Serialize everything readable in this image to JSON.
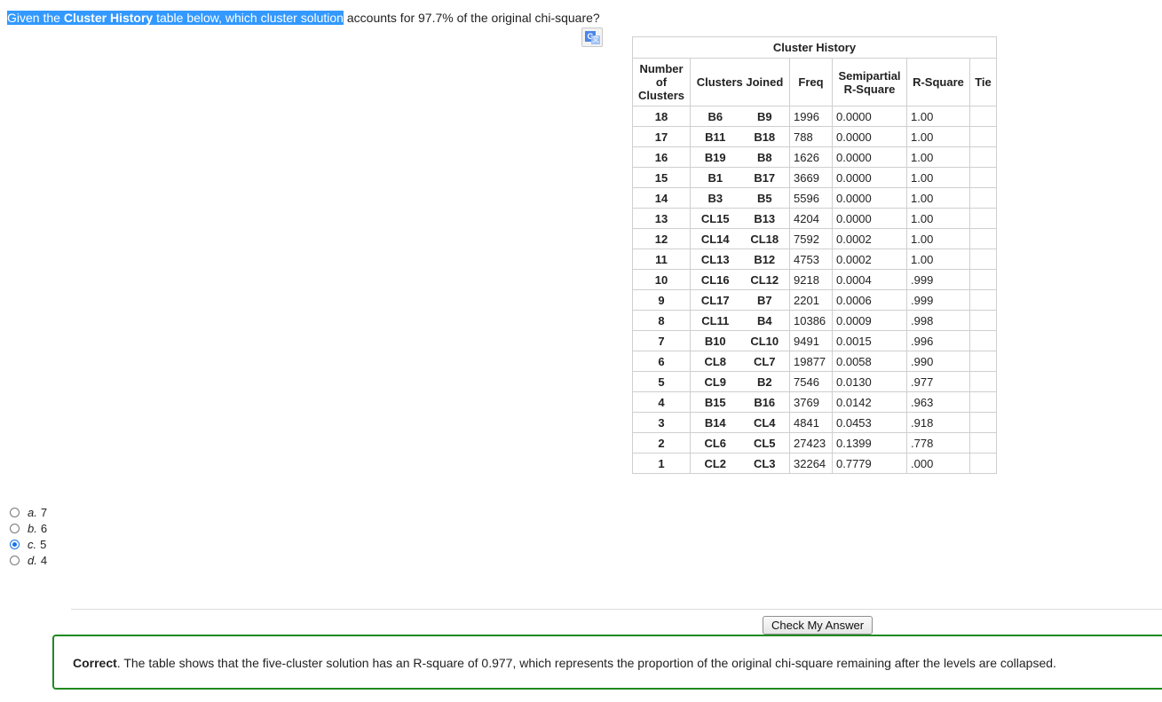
{
  "question": {
    "part1": "Given the ",
    "bold": "Cluster History",
    "part2": " table below, which cluster solution",
    "part3": " accounts for 97.7% of the original chi-square?"
  },
  "table": {
    "caption": "Cluster History",
    "headers": {
      "num_line1": "Number",
      "num_line2": "of",
      "num_line3": "Clusters",
      "joined": "Clusters Joined",
      "freq": "Freq",
      "semi_line1": "Semipartial",
      "semi_line2": "R-Square",
      "rsq": "R-Square",
      "tie": "Tie"
    },
    "rows": [
      [
        "18",
        "B6",
        "B9",
        "1996",
        "0.0000",
        "1.00",
        ""
      ],
      [
        "17",
        "B11",
        "B18",
        "788",
        "0.0000",
        "1.00",
        ""
      ],
      [
        "16",
        "B19",
        "B8",
        "1626",
        "0.0000",
        "1.00",
        ""
      ],
      [
        "15",
        "B1",
        "B17",
        "3669",
        "0.0000",
        "1.00",
        ""
      ],
      [
        "14",
        "B3",
        "B5",
        "5596",
        "0.0000",
        "1.00",
        ""
      ],
      [
        "13",
        "CL15",
        "B13",
        "4204",
        "0.0000",
        "1.00",
        ""
      ],
      [
        "12",
        "CL14",
        "CL18",
        "7592",
        "0.0002",
        "1.00",
        ""
      ],
      [
        "11",
        "CL13",
        "B12",
        "4753",
        "0.0002",
        "1.00",
        ""
      ],
      [
        "10",
        "CL16",
        "CL12",
        "9218",
        "0.0004",
        ".999",
        ""
      ],
      [
        "9",
        "CL17",
        "B7",
        "2201",
        "0.0006",
        ".999",
        ""
      ],
      [
        "8",
        "CL11",
        "B4",
        "10386",
        "0.0009",
        ".998",
        ""
      ],
      [
        "7",
        "B10",
        "CL10",
        "9491",
        "0.0015",
        ".996",
        ""
      ],
      [
        "6",
        "CL8",
        "CL7",
        "19877",
        "0.0058",
        ".990",
        ""
      ],
      [
        "5",
        "CL9",
        "B2",
        "7546",
        "0.0130",
        ".977",
        ""
      ],
      [
        "4",
        "B15",
        "B16",
        "3769",
        "0.0142",
        ".963",
        ""
      ],
      [
        "3",
        "B14",
        "CL4",
        "4841",
        "0.0453",
        ".918",
        ""
      ],
      [
        "2",
        "CL6",
        "CL5",
        "27423",
        "0.1399",
        ".778",
        ""
      ],
      [
        "1",
        "CL2",
        "CL3",
        "32264",
        "0.7779",
        ".000",
        ""
      ]
    ]
  },
  "options": [
    {
      "letter": "a.",
      "value": "7",
      "checked": false
    },
    {
      "letter": "b.",
      "value": "6",
      "checked": false
    },
    {
      "letter": "c.",
      "value": "5",
      "checked": true
    },
    {
      "letter": "d.",
      "value": "4",
      "checked": false
    }
  ],
  "check_button": "Check My Answer",
  "feedback": {
    "bold": "Correct",
    "text": ". The table shows that the five-cluster solution has an R-square of 0.977, which represents the proportion of the original chi-square remaining after the levels are collapsed."
  },
  "colors": {
    "selection": "#3399ff",
    "radio_checked": "#1a73e8",
    "feedback_border": "#1e8a1e"
  },
  "icons": {
    "translate": "google-translate-icon"
  }
}
